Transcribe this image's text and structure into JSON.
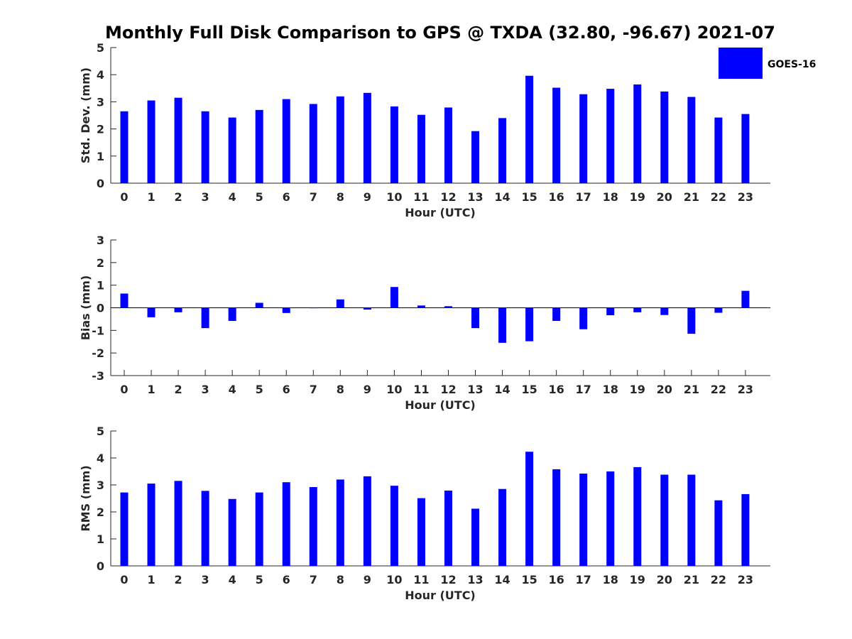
{
  "figure": {
    "title": "Monthly Full Disk Comparison to GPS @ TXDA (32.80, -96.67) 2021-07",
    "legend": {
      "label": "GOES-16",
      "color": "#0000ff",
      "position": "top-right"
    }
  },
  "chart_data": [
    {
      "type": "bar",
      "xlabel": "Hour (UTC)",
      "ylabel": "Std. Dev. (mm)",
      "ylim": [
        0,
        5
      ],
      "yticks": [
        0,
        1,
        2,
        3,
        4,
        5
      ],
      "categories": [
        "0",
        "1",
        "2",
        "3",
        "4",
        "5",
        "6",
        "7",
        "8",
        "9",
        "10",
        "11",
        "12",
        "13",
        "14",
        "15",
        "16",
        "17",
        "18",
        "19",
        "20",
        "21",
        "22",
        "23"
      ],
      "series": [
        {
          "name": "GOES-16",
          "color": "#0000ff",
          "values": [
            2.65,
            3.05,
            3.15,
            2.65,
            2.42,
            2.7,
            3.1,
            2.92,
            3.2,
            3.33,
            2.83,
            2.52,
            2.79,
            1.92,
            2.4,
            3.96,
            3.52,
            3.28,
            3.48,
            3.64,
            3.38,
            3.18,
            2.42,
            2.55
          ]
        }
      ],
      "grid": false
    },
    {
      "type": "bar",
      "xlabel": "Hour (UTC)",
      "ylabel": "Bias (mm)",
      "ylim": [
        -3,
        3
      ],
      "yticks": [
        -3,
        -2,
        -1,
        0,
        1,
        2,
        3
      ],
      "categories": [
        "0",
        "1",
        "2",
        "3",
        "4",
        "5",
        "6",
        "7",
        "8",
        "9",
        "10",
        "11",
        "12",
        "13",
        "14",
        "15",
        "16",
        "17",
        "18",
        "19",
        "20",
        "21",
        "22",
        "23"
      ],
      "series": [
        {
          "name": "GOES-16",
          "color": "#0000ff",
          "values": [
            0.63,
            -0.42,
            -0.2,
            -0.9,
            -0.58,
            0.22,
            -0.23,
            -0.02,
            0.37,
            -0.08,
            0.92,
            0.1,
            0.07,
            -0.9,
            -1.55,
            -1.48,
            -0.58,
            -0.95,
            -0.33,
            -0.2,
            -0.32,
            -1.15,
            -0.22,
            0.75
          ]
        }
      ],
      "grid": false
    },
    {
      "type": "bar",
      "xlabel": "Hour (UTC)",
      "ylabel": "RMS (mm)",
      "ylim": [
        0,
        5
      ],
      "yticks": [
        0,
        1,
        2,
        3,
        4,
        5
      ],
      "categories": [
        "0",
        "1",
        "2",
        "3",
        "4",
        "5",
        "6",
        "7",
        "8",
        "9",
        "10",
        "11",
        "12",
        "13",
        "14",
        "15",
        "16",
        "17",
        "18",
        "19",
        "20",
        "21",
        "22",
        "23"
      ],
      "series": [
        {
          "name": "GOES-16",
          "color": "#0000ff",
          "values": [
            2.72,
            3.05,
            3.15,
            2.78,
            2.48,
            2.72,
            3.1,
            2.92,
            3.2,
            3.32,
            2.97,
            2.51,
            2.79,
            2.12,
            2.85,
            4.23,
            3.58,
            3.42,
            3.5,
            3.66,
            3.38,
            3.38,
            2.43,
            2.66
          ]
        }
      ],
      "grid": false
    }
  ]
}
